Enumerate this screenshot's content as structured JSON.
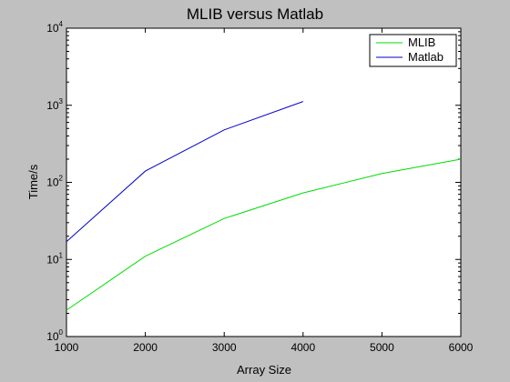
{
  "chart_data": {
    "type": "line",
    "title": "MLIB versus Matlab",
    "xlabel": "Array Size",
    "ylabel": "Time/s",
    "xlim": [
      1000,
      6000
    ],
    "ylim": [
      1,
      10000
    ],
    "yscale": "log",
    "grid": false,
    "legend_position": "top-right",
    "x_ticks": [
      1000,
      2000,
      3000,
      4000,
      5000,
      6000
    ],
    "y_ticks": [
      1,
      10,
      100,
      1000,
      10000
    ],
    "y_tick_exponents": [
      "0",
      "1",
      "2",
      "3",
      "4"
    ],
    "y_tick_base": "10",
    "series": [
      {
        "name": "MLIB",
        "color": "#00dd00",
        "x": [
          1000,
          2000,
          3000,
          4000,
          5000,
          6000
        ],
        "y": [
          2.2,
          11,
          34,
          73,
          130,
          200
        ]
      },
      {
        "name": "Matlab",
        "color": "#0000cc",
        "x": [
          1000,
          2000,
          3000,
          4000
        ],
        "y": [
          17,
          140,
          480,
          1120
        ]
      }
    ]
  }
}
